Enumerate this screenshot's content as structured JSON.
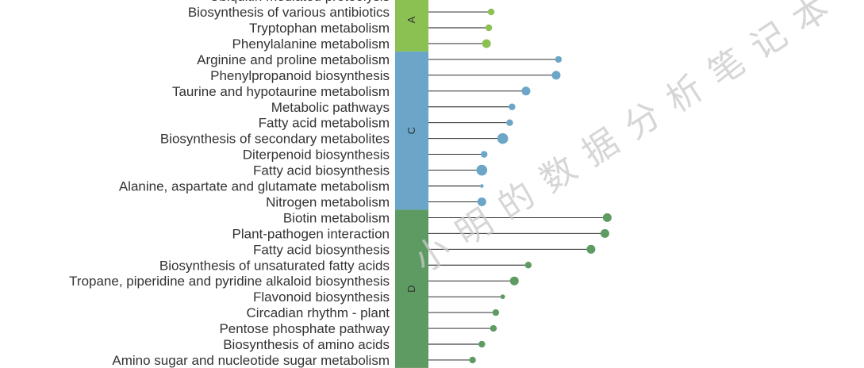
{
  "chart_data": {
    "type": "lollipop",
    "groups": [
      {
        "name": "A",
        "color": "#8bc153",
        "items": [
          {
            "label": "Ubiquitin mediated proteolysis",
            "value": null,
            "size": null
          },
          {
            "label": "Biosynthesis of various antibiotics",
            "value": 0.27,
            "size": 2
          },
          {
            "label": "Tryptophan metabolism",
            "value": 0.26,
            "size": 2
          },
          {
            "label": "Phenylalanine metabolism",
            "value": 0.25,
            "size": 3
          }
        ]
      },
      {
        "name": "C",
        "color": "#6ba6c8",
        "items": [
          {
            "label": "Arginine and proline metabolism",
            "value": 0.56,
            "size": 2
          },
          {
            "label": "Phenylpropanoid biosynthesis",
            "value": 0.55,
            "size": 3
          },
          {
            "label": "Taurine and hypotaurine metabolism",
            "value": 0.42,
            "size": 3
          },
          {
            "label": "Metabolic pathways",
            "value": 0.36,
            "size": 2
          },
          {
            "label": "Fatty acid metabolism",
            "value": 0.35,
            "size": 2
          },
          {
            "label": "Biosynthesis of secondary metabolites",
            "value": 0.32,
            "size": 4
          },
          {
            "label": "Diterpenoid biosynthesis",
            "value": 0.24,
            "size": 2
          },
          {
            "label": "Fatty acid biosynthesis",
            "value": 0.23,
            "size": 4
          },
          {
            "label": "Alanine, aspartate and glutamate metabolism",
            "value": 0.23,
            "size": 0.5
          },
          {
            "label": "Nitrogen metabolism",
            "value": 0.23,
            "size": 3
          }
        ]
      },
      {
        "name": "D",
        "color": "#5e9b62",
        "items": [
          {
            "label": "Biotin metabolism",
            "value": 0.77,
            "size": 3
          },
          {
            "label": "Plant-pathogen interaction",
            "value": 0.76,
            "size": 3
          },
          {
            "label": "Fatty acid biosynthesis",
            "value": 0.7,
            "size": 3
          },
          {
            "label": "Biosynthesis of unsaturated fatty acids",
            "value": 0.43,
            "size": 2
          },
          {
            "label": "Tropane, piperidine and pyridine alkaloid biosynthesis",
            "value": 0.37,
            "size": 3
          },
          {
            "label": "Flavonoid biosynthesis",
            "value": 0.32,
            "size": 1
          },
          {
            "label": "Circadian rhythm - plant",
            "value": 0.29,
            "size": 2
          },
          {
            "label": "Pentose phosphate pathway",
            "value": 0.28,
            "size": 2
          },
          {
            "label": "Biosynthesis of amino acids",
            "value": 0.23,
            "size": 2
          },
          {
            "label": "Amino sugar and nucleotide sugar metabolism",
            "value": 0.19,
            "size": 2
          }
        ]
      }
    ],
    "xlim": [
      0,
      0.82
    ],
    "grid": false,
    "legend": "none",
    "stem_color": "#111111"
  },
  "watermark": "小明的数据分析笔记本"
}
